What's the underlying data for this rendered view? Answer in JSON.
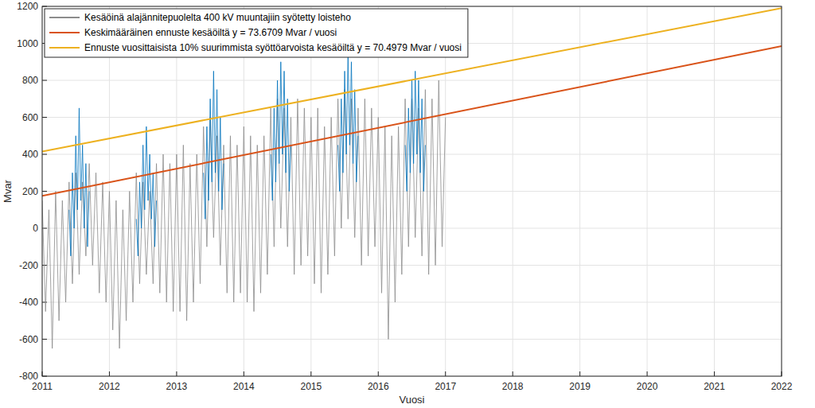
{
  "chart_data": {
    "type": "line",
    "x_label": "Vuosi",
    "y_label": "Mvar",
    "xlim": [
      2011,
      2022
    ],
    "xticks": [
      2011,
      2012,
      2013,
      2014,
      2015,
      2016,
      2017,
      2018,
      2019,
      2020,
      2021,
      2022
    ],
    "ylim": [
      -800,
      1200
    ],
    "yticks": [
      -800,
      -600,
      -400,
      -200,
      0,
      200,
      400,
      600,
      800,
      1000,
      1200
    ],
    "grid": true,
    "legend": "top-left",
    "series": [
      {
        "name": "Kesäöinä alajännitepuolelta 400 kV muuntajiin syötetty loisteho",
        "color": "#8c8c8c",
        "x": [
          2011,
          2011.05,
          2011.1,
          2011.15,
          2011.2,
          2011.25,
          2011.3,
          2011.35,
          2011.4,
          2011.45,
          2011.5,
          2011.55,
          2011.6,
          2011.65,
          2011.7,
          2011.75,
          2011.8,
          2011.85,
          2011.9,
          2011.95,
          2012,
          2012.05,
          2012.1,
          2012.15,
          2012.2,
          2012.25,
          2012.3,
          2012.35,
          2012.4,
          2012.45,
          2012.5,
          2012.55,
          2012.6,
          2012.65,
          2012.7,
          2012.75,
          2012.8,
          2012.85,
          2012.9,
          2012.95,
          2013,
          2013.05,
          2013.1,
          2013.15,
          2013.2,
          2013.25,
          2013.3,
          2013.35,
          2013.4,
          2013.45,
          2013.5,
          2013.55,
          2013.6,
          2013.65,
          2013.7,
          2013.75,
          2013.8,
          2013.85,
          2013.9,
          2013.95,
          2014,
          2014.05,
          2014.1,
          2014.15,
          2014.2,
          2014.25,
          2014.3,
          2014.35,
          2014.4,
          2014.45,
          2014.5,
          2014.55,
          2014.6,
          2014.65,
          2014.7,
          2014.75,
          2014.8,
          2014.85,
          2014.9,
          2014.95,
          2015,
          2015.05,
          2015.1,
          2015.15,
          2015.2,
          2015.25,
          2015.3,
          2015.35,
          2015.4,
          2015.45,
          2015.5,
          2015.55,
          2015.6,
          2015.65,
          2015.7,
          2015.75,
          2015.8,
          2015.85,
          2015.9,
          2015.95,
          2016,
          2016.05,
          2016.1,
          2016.15,
          2016.2,
          2016.25,
          2016.3,
          2016.35,
          2016.4,
          2016.45,
          2016.5,
          2016.55,
          2016.6,
          2016.65,
          2016.7,
          2016.75,
          2016.8,
          2016.85,
          2016.9,
          2016.95,
          2017
        ],
        "values": [
          150,
          -450,
          100,
          -650,
          200,
          -500,
          150,
          -400,
          250,
          -300,
          300,
          -250,
          250,
          -150,
          350,
          -200,
          300,
          -350,
          250,
          -400,
          200,
          -550,
          150,
          -650,
          100,
          -500,
          200,
          -400,
          300,
          -300,
          250,
          -250,
          200,
          -300,
          350,
          -350,
          400,
          -400,
          350,
          -450,
          400,
          -450,
          450,
          -500,
          350,
          -400,
          400,
          -300,
          550,
          -100,
          600,
          -50,
          500,
          -200,
          450,
          -350,
          500,
          -400,
          450,
          -350,
          550,
          -400,
          500,
          -450,
          450,
          -350,
          500,
          -250,
          650,
          -100,
          700,
          0,
          650,
          -100,
          600,
          -250,
          700,
          -200,
          650,
          -150,
          600,
          -300,
          650,
          -350,
          550,
          -250,
          600,
          -150,
          700,
          0,
          750,
          50,
          700,
          -50,
          650,
          -200,
          700,
          -150,
          650,
          -100,
          600,
          -350,
          550,
          -600,
          500,
          -400,
          550,
          -250,
          700,
          -100,
          700,
          -50,
          650,
          -150,
          750,
          -250,
          700,
          -200,
          800,
          -100,
          600
        ]
      },
      {
        "color": "#0072bd",
        "x": [
          2011.4,
          2011.425,
          2011.45,
          2011.475,
          2011.5,
          2011.525,
          2011.55,
          2011.575,
          2011.6,
          2011.625,
          2011.65,
          2011.675,
          2011.7,
          2012,
          2012.4,
          2012.425,
          2012.45,
          2012.475,
          2012.5,
          2012.525,
          2012.55,
          2012.575,
          2012.6,
          2012.625,
          2012.65,
          2012.675,
          2012.7,
          2013,
          2013.4,
          2013.425,
          2013.45,
          2013.475,
          2013.5,
          2013.525,
          2013.55,
          2013.575,
          2013.6,
          2013.625,
          2013.65,
          2013.675,
          2013.7,
          2014,
          2014.4,
          2014.425,
          2014.45,
          2014.475,
          2014.5,
          2014.525,
          2014.55,
          2014.575,
          2014.6,
          2014.625,
          2014.65,
          2014.675,
          2014.7,
          2015,
          2015.4,
          2015.425,
          2015.45,
          2015.475,
          2015.5,
          2015.525,
          2015.55,
          2015.575,
          2015.6,
          2015.625,
          2015.65,
          2015.675,
          2015.7,
          2016,
          2016.4,
          2016.425,
          2016.45,
          2016.475,
          2016.5,
          2016.525,
          2016.55,
          2016.575,
          2016.6,
          2016.625,
          2016.65,
          2016.675,
          2016.7
        ],
        "values": [
          100,
          -150,
          300,
          0,
          500,
          100,
          650,
          150,
          450,
          0,
          350,
          -100,
          200,
          null,
          50,
          -150,
          250,
          0,
          450,
          100,
          550,
          150,
          400,
          50,
          300,
          -100,
          150,
          null,
          300,
          50,
          550,
          150,
          700,
          250,
          850,
          300,
          750,
          200,
          600,
          100,
          350,
          null,
          400,
          150,
          650,
          250,
          800,
          350,
          900,
          400,
          850,
          300,
          700,
          200,
          450,
          null,
          450,
          200,
          700,
          300,
          850,
          400,
          950,
          450,
          900,
          350,
          750,
          250,
          500,
          null,
          450,
          200,
          650,
          300,
          800,
          350,
          850,
          400,
          800,
          300,
          700,
          200,
          450
        ]
      },
      {
        "name": "Keskimääräinen ennuste kesäöiltä y =  73.6709 Mvar / vuosi",
        "color": "#d95319",
        "x": [
          2011,
          2022
        ],
        "values": [
          175,
          985
        ]
      },
      {
        "name": "Ennuste vuosittaisista 10% suurimmista syöttöarvoista kesäöiltä y =  70.4979 Mvar / vuosi",
        "color": "#edb120",
        "x": [
          2011,
          2022
        ],
        "values": [
          415,
          1190
        ]
      }
    ]
  }
}
